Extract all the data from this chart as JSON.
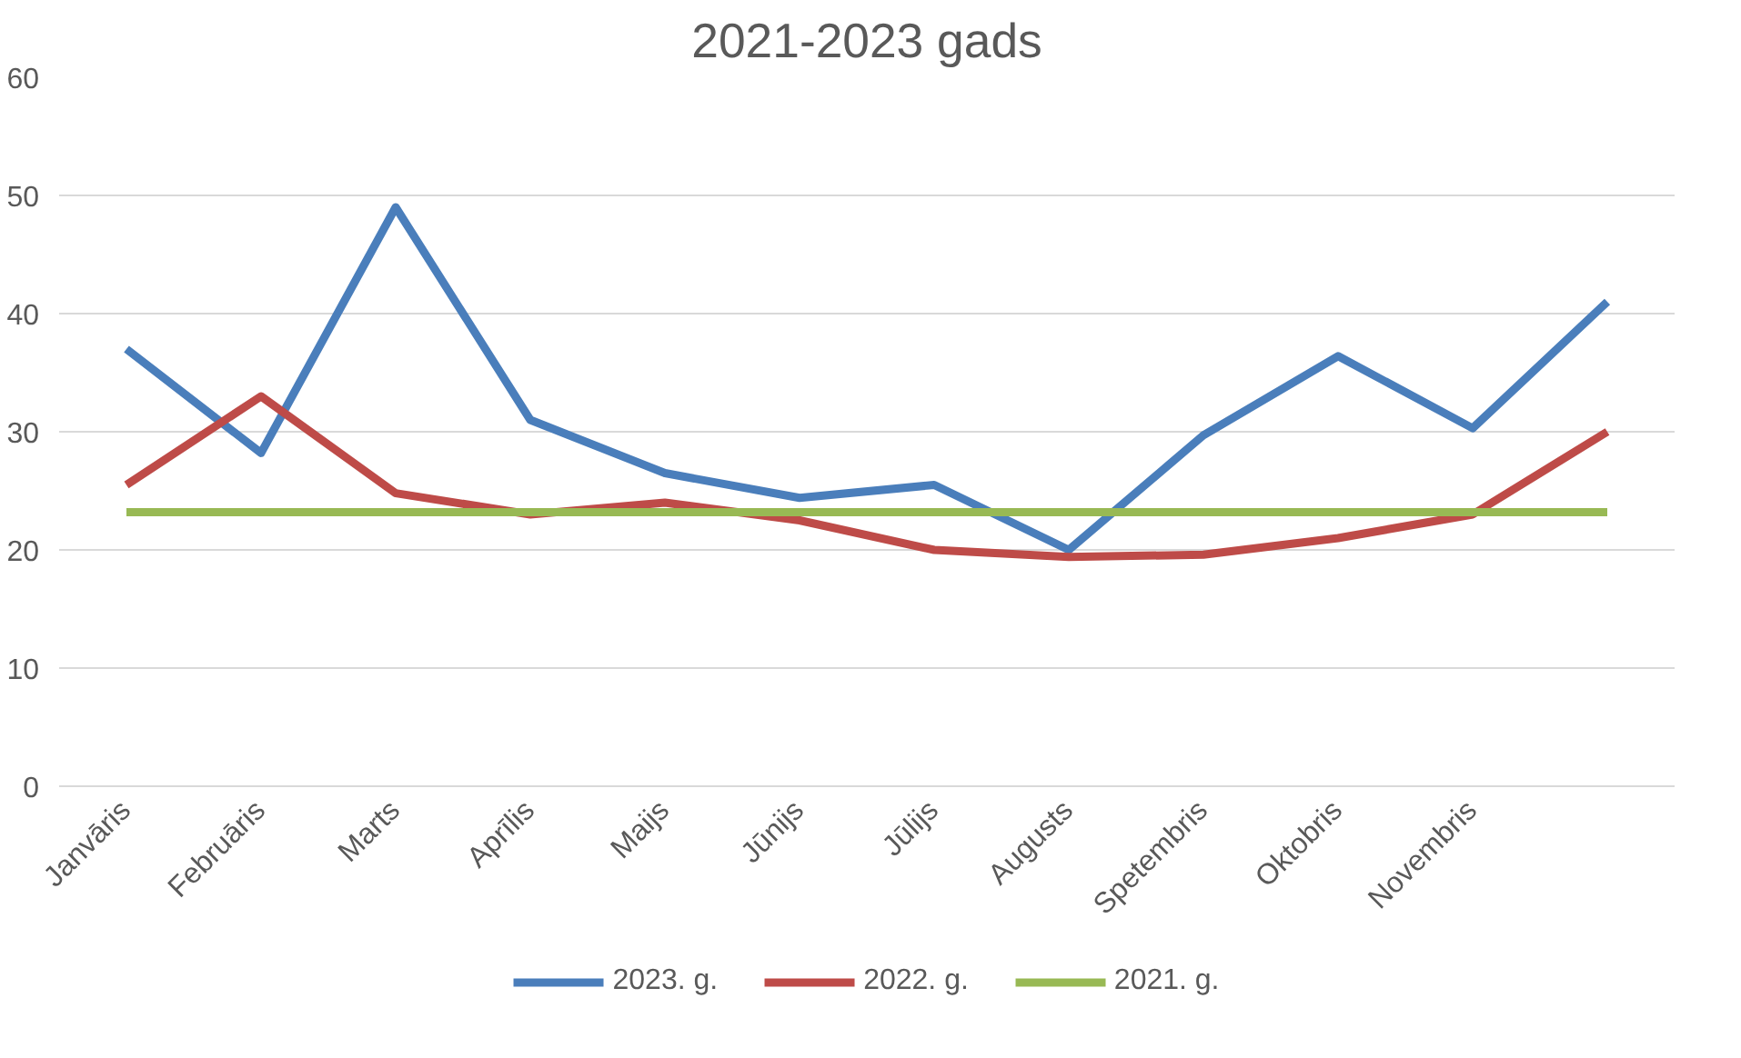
{
  "chart_data": {
    "type": "line",
    "title": "2021-2023 gads",
    "categories": [
      "Janvāris",
      "Februāris",
      "Marts",
      "Aprīlis",
      "Maijs",
      "Jūnijs",
      "Jūlijs",
      "Augusts",
      "Spetembris",
      "Oktobris",
      "Novembris",
      null
    ],
    "series": [
      {
        "name": "2023. g.",
        "color": "#4a7ebb",
        "values": [
          37,
          28.2,
          49,
          31,
          26.5,
          24.4,
          25.5,
          20,
          29.7,
          36.4,
          30.3,
          41
        ]
      },
      {
        "name": "2022. g.",
        "color": "#be4b48",
        "values": [
          25.5,
          33,
          24.8,
          23,
          24,
          22.5,
          20,
          19.4,
          19.6,
          21,
          23,
          30
        ]
      },
      {
        "name": "2021. g.",
        "color": "#98b954",
        "values": [
          23.2,
          23.2,
          23.2,
          23.2,
          23.2,
          23.2,
          23.2,
          23.2,
          23.2,
          23.2,
          23.2,
          23.2
        ]
      }
    ],
    "ylim": [
      0,
      60
    ],
    "yticks": [
      0,
      10,
      20,
      30,
      40,
      50,
      60
    ],
    "grid": "y",
    "legend": "bottom",
    "marker": "none",
    "line_style": "solid"
  }
}
